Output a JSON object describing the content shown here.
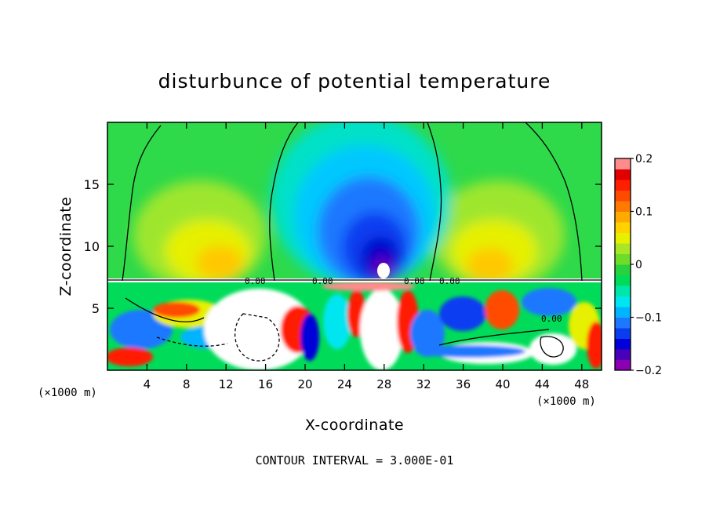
{
  "chart_data": {
    "type": "heatmap",
    "title": "disturbunce of potential temperature",
    "xlabel": "X-coordinate",
    "ylabel": "Z-coordinate",
    "x_unit_left": "(×1000 m)",
    "x_unit_right": "(×1000 m)",
    "xlim": [
      0,
      50
    ],
    "ylim": [
      0,
      20
    ],
    "x_ticks": [
      4,
      8,
      12,
      16,
      20,
      24,
      28,
      32,
      36,
      40,
      44,
      48
    ],
    "y_ticks": [
      5,
      10,
      15
    ],
    "colorbar": {
      "min": -0.2,
      "max": 0.2,
      "tick_values": [
        0.2,
        0.1,
        0,
        -0.1,
        -0.2
      ],
      "tick_labels": [
        "0.2",
        "0.1",
        "0",
        "−0.1",
        "−0.2"
      ],
      "colors": [
        "#8b00b0",
        "#4a00b8",
        "#0000d8",
        "#0a3cf0",
        "#1e78ff",
        "#00b4ff",
        "#00e6f0",
        "#00e6aa",
        "#00dc5a",
        "#28d23c",
        "#6edc28",
        "#aae628",
        "#e6f000",
        "#ffd200",
        "#ffaa00",
        "#ff7a00",
        "#ff4b00",
        "#ff1e00",
        "#e00000",
        "#ff8c8c"
      ]
    },
    "contour_label": "0.00",
    "footer": "CONTOUR INTERVAL = 3.000E-01"
  }
}
